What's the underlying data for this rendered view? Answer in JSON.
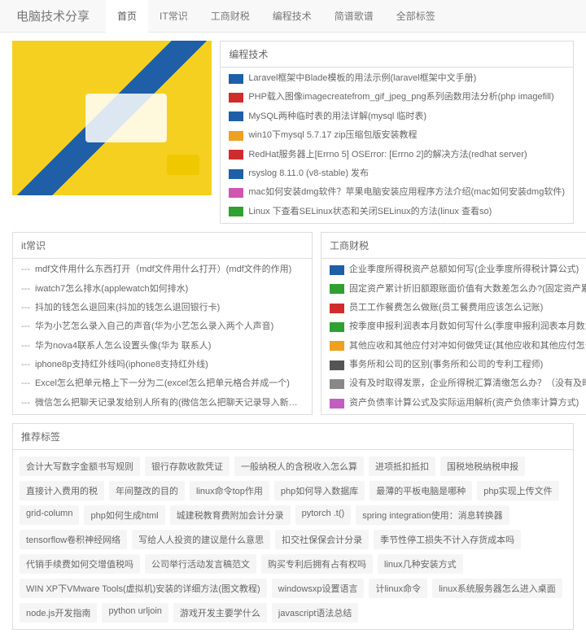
{
  "brand": "电脑技术分享",
  "nav": [
    "首页",
    "IT常识",
    "工商财税",
    "编程技术",
    "简谱歌谱",
    "全部标签"
  ],
  "nav_active": 0,
  "panels": {
    "tech": {
      "title": "编程技术",
      "items": [
        {
          "color": "#1e5fa8",
          "text": "Laravel框架中Blade模板的用法示例(laravel框架中文手册)"
        },
        {
          "color": "#d02c2c",
          "text": "PHP载入图像imagecreatefrom_gif_jpeg_png系列函数用法分析(php imagefill)"
        },
        {
          "color": "#1e5fa8",
          "text": "MySQL两种临时表的用法详解(mysql 临时表)"
        },
        {
          "color": "#f0a020",
          "text": "win10下mysql 5.7.17 zip压缩包版安装教程"
        },
        {
          "color": "#d02c2c",
          "text": "RedHat服务器上[Errno 5] OSError: [Errno 2]的解决方法(redhat server)"
        },
        {
          "color": "#1e5fa8",
          "text": "rsyslog 8.11.0 (v8-stable) 发布"
        },
        {
          "color": "#d056b0",
          "text": "mac如何安装dmg软件？苹果电脑安装应用程序方法介绍(mac如何安装dmg软件)"
        },
        {
          "color": "#30a030",
          "text": "Linux 下查看SELinux状态和关闭SELinux的方法(linux 查看so)"
        }
      ]
    },
    "it": {
      "title": "it常识",
      "items": [
        {
          "text": "mdf文件用什么东西打开（mdf文件用什么打开）(mdf文件的作用)"
        },
        {
          "text": "iwatch7怎么排水(applewatch如何排水)"
        },
        {
          "text": "抖加的钱怎么退回来(抖加的钱怎么退回银行卡)"
        },
        {
          "text": "华为小艺怎么录入自己的声音(华为小艺怎么录入两个人声音)"
        },
        {
          "text": "华为nova4联系人怎么设置头像(华为 联系人)"
        },
        {
          "text": "iphone8p支持红外线吗(iphone8支持红外线)"
        },
        {
          "text": "Excel怎么把单元格上下一分为二(excel怎么把单元格合并成一个)"
        },
        {
          "text": "微信怎么把聊天记录发给别人所有的(微信怎么把聊天记录导入新手机)"
        }
      ]
    },
    "tax": {
      "title": "工商财税",
      "items": [
        {
          "color": "#1e5fa8",
          "text": "企业季度所得税资产总额如何写(企业季度所得税计算公式)"
        },
        {
          "color": "#30a030",
          "text": "固定资产累计折旧额跟账面价值有大数差怎么办?(固定资产累计折旧合计科目)"
        },
        {
          "color": "#d02c2c",
          "text": "员工工作餐费怎么做账(员工餐费用应该怎么记账)"
        },
        {
          "color": "#30a030",
          "text": "按季度申报利润表本月数如何写什么(季度申报利润表本月数怎么填)"
        },
        {
          "color": "#f0a020",
          "text": "其他应收和其他应付对冲如何做凭证(其他应收和其他应付怎么调账)"
        },
        {
          "color": "#555",
          "text": "事务所和公司的区别(事务所和公司的专利工程师)"
        },
        {
          "color": "#888",
          "text": "没有及时取得发票，企业所得税汇算清缴怎么办？（没有及时取得发票可以入成本"
        },
        {
          "color": "#c05fc0",
          "text": "资产负债率计算公式及实际运用解析(资产负债率计算方式)"
        }
      ]
    }
  },
  "tags_title": "推荐标签",
  "tags": [
    "会计大写数字金额书写规则",
    "银行存款收款凭证",
    "一般纳税人的含税收入怎么算",
    "进项抵扣抵扣",
    "国税地税纳税申报",
    "直接计入费用的税",
    "年间整改的目的",
    "linux命令top作用",
    "php如何导入数据库",
    "最薄的平板电脑是哪种",
    "php实现上传文件",
    "grid-column",
    "php如何生成html",
    "城建税教育费附加会计分录",
    "pytorch .t()",
    "spring integration使用：消息转换器",
    "tensorflow卷积神经网络",
    "写给人人投资的建议是什么意思",
    "扣交社保保会计分录",
    "季节性停工损失不计入存货成本吗",
    "代销手续费如何交增值税吗",
    "公司举行活动发言稿范文",
    "购买专利后拥有占有权吗",
    "linux几种安装方式",
    "WIN XP下VMware Tools(虚拟机)安装的详细方法(图文教程)",
    "windowsxp设置语言",
    "计linux命令",
    "linux系统服务器怎么进入桌面",
    "node.js开发指南",
    "python urljoin",
    "游戏开发主要学什么",
    "javascript语法总结"
  ]
}
